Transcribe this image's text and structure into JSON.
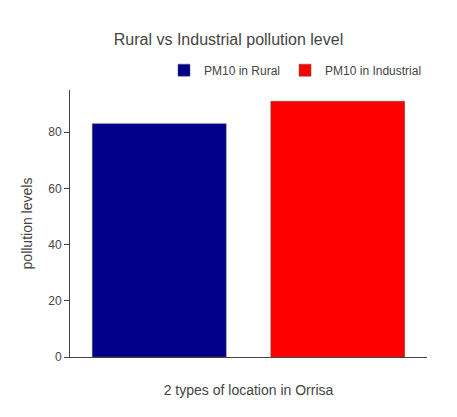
{
  "chart_data": {
    "type": "bar",
    "title": "Rural vs Industrial pollution level",
    "xlabel": "2 types of location in Orrisa",
    "ylabel": "pollution levels",
    "categories": [
      null,
      null
    ],
    "series": [
      {
        "name": "PM10 in Rural",
        "color": "#00008B",
        "values": [
          83,
          null
        ]
      },
      {
        "name": "PM10 in Industrial",
        "color": "#FF0000",
        "values": [
          null,
          91
        ]
      }
    ],
    "ylim": [
      0,
      95
    ],
    "yticks": [
      0,
      20,
      40,
      60,
      80
    ],
    "grid": false,
    "legend": "top",
    "tick_labels": "y"
  }
}
